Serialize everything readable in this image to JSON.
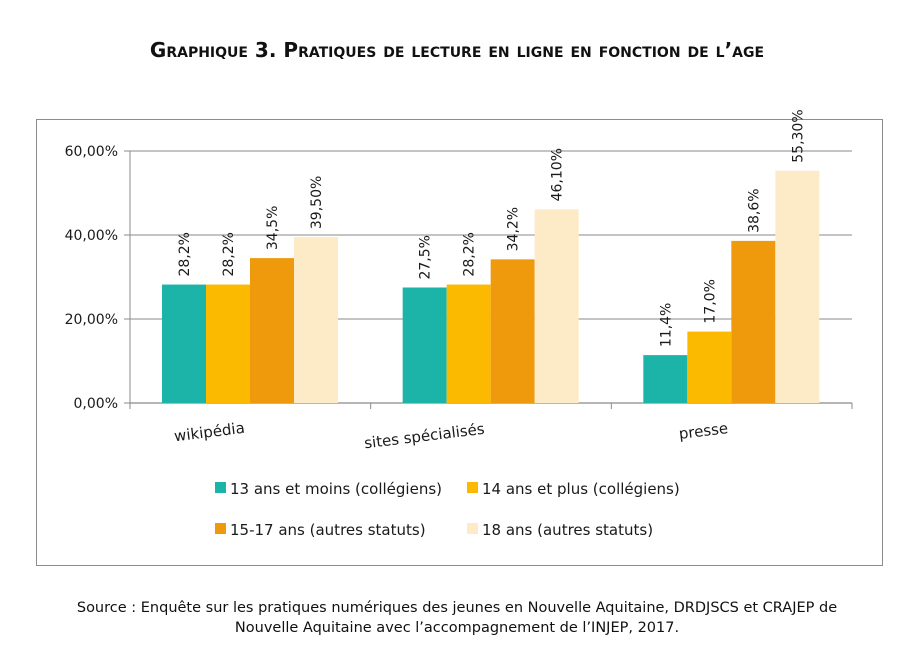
{
  "title": "Graphique 3. Pratiques de lecture en ligne en fonction de l’age",
  "source": {
    "line1": "Source : Enquête sur les pratiques numériques des jeunes en Nouvelle Aquitaine, DRDJSCS et CRAJEP de",
    "line2": "Nouvelle Aquitaine avec l’accompagnement de l’INJEP, 2017."
  },
  "chart_data": {
    "type": "bar",
    "categories": [
      "wikipédia",
      "sites spécialisés",
      "presse"
    ],
    "series": [
      {
        "name": "13 ans et moins (collégiens)",
        "color": "#1cb3a8",
        "values": [
          28.2,
          27.5,
          11.4
        ],
        "labels": [
          "28,2%",
          "27,5%",
          "11,4%"
        ]
      },
      {
        "name": "14 ans et plus (collégiens)",
        "color": "#fbba00",
        "values": [
          28.2,
          28.2,
          17.0
        ],
        "labels": [
          "28,2%",
          "28,2%",
          "17,0%"
        ]
      },
      {
        "name": "15-17 ans (autres statuts)",
        "color": "#ef9a0c",
        "values": [
          34.5,
          34.2,
          38.6
        ],
        "labels": [
          "34,5%",
          "34,2%",
          "38,6%"
        ]
      },
      {
        "name": "18 ans (autres statuts)",
        "color": "#fdebc8",
        "values": [
          39.5,
          46.1,
          55.3
        ],
        "labels": [
          "39,50%",
          "46,10%",
          "55,30%"
        ]
      }
    ],
    "yticks": [
      0,
      20,
      40,
      60
    ],
    "ytick_labels": [
      "0,00%",
      "20,00%",
      "40,00%",
      "60,00%"
    ],
    "ylim": [
      0,
      60
    ],
    "grid": true,
    "legend_position": "bottom"
  }
}
